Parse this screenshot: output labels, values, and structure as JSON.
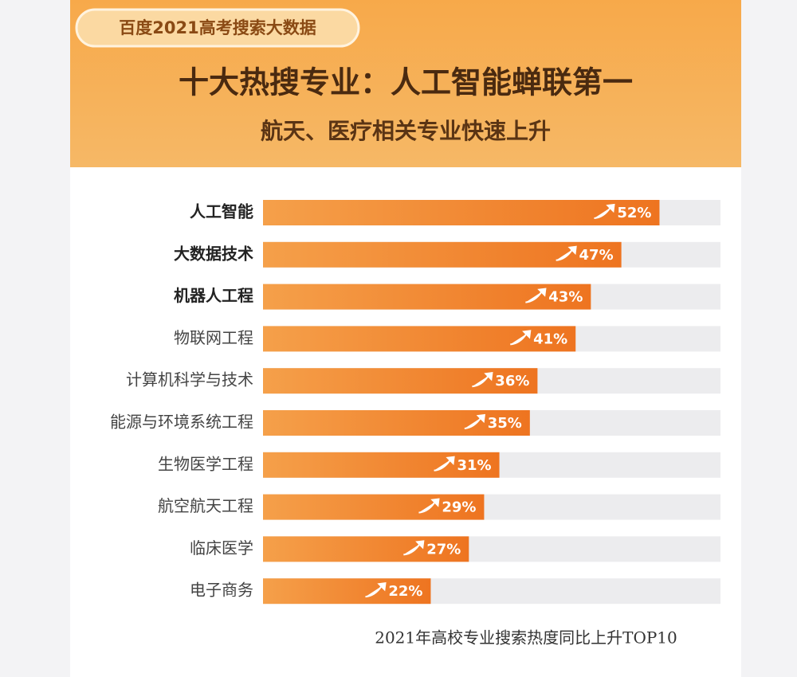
{
  "chart_data": {
    "type": "bar",
    "orientation": "horizontal",
    "badge": "百度2021高考搜索大数据",
    "title": "十大热搜专业：人工智能蝉联第一",
    "subtitle": "航天、医疗相关专业快速上升",
    "caption": "2021年高校专业搜索热度同比上升TOP10",
    "categories": [
      "人工智能",
      "大数据技术",
      "机器人工程",
      "物联网工程",
      "计算机科学与技术",
      "能源与环境系统工程",
      "生物医学工程",
      "航空航天工程",
      "临床医学",
      "电子商务"
    ],
    "values": [
      52,
      47,
      43,
      41,
      36,
      35,
      31,
      29,
      27,
      22
    ],
    "value_labels": [
      "52%",
      "47%",
      "43%",
      "41%",
      "36%",
      "35%",
      "31%",
      "29%",
      "27%",
      "22%"
    ],
    "color": "#f07a22",
    "xlim": [
      0,
      60
    ]
  }
}
